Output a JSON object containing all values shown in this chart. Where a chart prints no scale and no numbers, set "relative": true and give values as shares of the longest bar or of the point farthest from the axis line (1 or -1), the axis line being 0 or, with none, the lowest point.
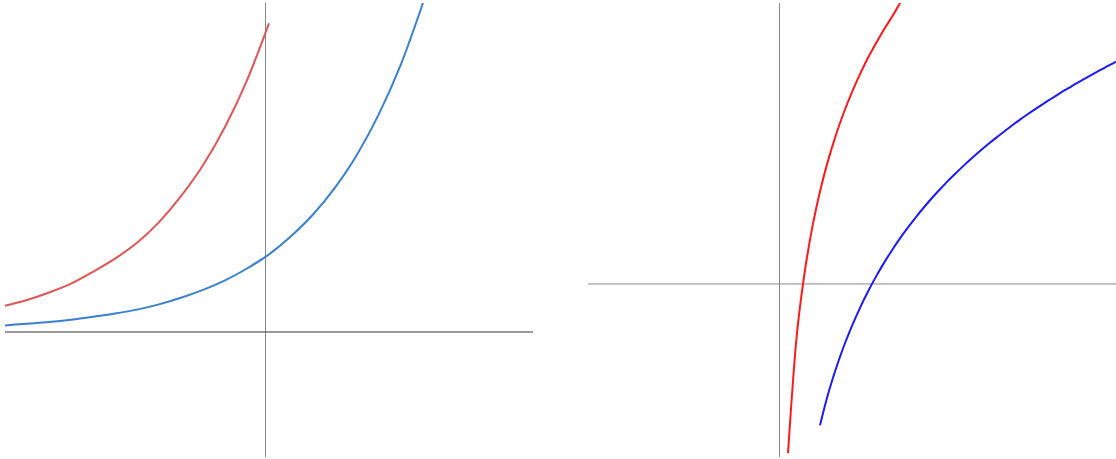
{
  "chart_data": [
    {
      "type": "line",
      "relative": true,
      "categories": [
        null,
        null,
        null,
        null,
        null,
        null,
        null,
        null,
        null,
        null,
        null,
        null,
        null,
        null,
        null,
        null,
        null,
        null,
        null,
        null,
        null,
        null,
        null,
        null,
        null
      ],
      "series": [
        {
          "color": "#e05555",
          "values": [
            0.08,
            0.097,
            0.12,
            0.147,
            0.183,
            0.223,
            0.271,
            0.334,
            0.413,
            0.507,
            0.623,
            0.765,
            0.938,
            null,
            null,
            null,
            null,
            null,
            null,
            null,
            null,
            null,
            null,
            null,
            null
          ]
        },
        {
          "color": "#3a80d0",
          "values": [
            0.02,
            0.025,
            0.03,
            0.037,
            0.046,
            0.056,
            0.068,
            0.084,
            0.104,
            0.128,
            0.157,
            0.193,
            0.236,
            0.291,
            0.357,
            0.439,
            0.539,
            0.663,
            0.814,
            1,
            null,
            null,
            null,
            null,
            null
          ]
        }
      ],
      "ref_lines": [
        {
          "axis": "y",
          "value": 0,
          "color": "#333333"
        }
      ],
      "marker": "none",
      "line_style": "solid",
      "grid": false,
      "legend": false
    },
    {
      "type": "line",
      "relative": true,
      "categories": [
        null,
        null,
        null,
        null,
        null,
        null,
        null,
        null,
        null,
        null,
        null,
        null,
        null,
        null,
        null,
        null,
        null,
        null,
        null,
        null,
        null,
        null,
        null,
        null,
        null,
        null,
        null,
        null,
        null,
        null,
        null,
        null,
        null,
        null,
        null,
        null,
        null,
        null,
        null,
        null,
        null,
        null,
        null,
        null,
        null,
        null,
        null,
        null,
        null,
        null,
        null,
        null,
        null,
        null,
        null,
        null,
        null,
        null,
        null,
        null,
        null,
        null,
        null,
        null,
        null,
        null,
        null
      ],
      "series": [
        {
          "color": "#ff1a1a",
          "values": [
            null,
            null,
            null,
            null,
            null,
            null,
            null,
            null,
            null,
            null,
            null,
            null,
            null,
            null,
            null,
            null,
            null,
            null,
            null,
            null,
            null,
            null,
            null,
            null,
            null,
            -0.602,
            -0.212,
            0.025,
            0.196,
            0.329,
            0.438,
            0.531,
            0.612,
            0.683,
            0.747,
            0.805,
            0.857,
            0.906,
            0.951,
            1,
            null,
            null,
            null,
            null,
            null,
            null,
            null,
            null,
            null,
            null,
            null,
            null,
            null,
            null,
            null,
            null,
            null,
            null,
            null,
            null,
            null,
            null,
            null,
            null,
            null,
            null,
            null
          ]
        },
        {
          "color": "#1a1aff",
          "values": [
            null,
            null,
            null,
            null,
            null,
            null,
            null,
            null,
            null,
            null,
            null,
            null,
            null,
            null,
            null,
            null,
            null,
            null,
            null,
            null,
            null,
            null,
            null,
            null,
            null,
            null,
            null,
            null,
            null,
            -0.503,
            -0.393,
            -0.301,
            -0.22,
            -0.149,
            -0.085,
            -0.027,
            0.026,
            0.075,
            0.12,
            0.162,
            0.201,
            0.238,
            0.273,
            0.306,
            0.337,
            0.367,
            0.395,
            0.422,
            0.448,
            0.473,
            0.497,
            0.52,
            0.542,
            0.564,
            0.585,
            0.605,
            0.624,
            0.643,
            0.661,
            0.679,
            0.696,
            0.713,
            0.729,
            0.745,
            0.761,
            0.776,
            0.791
          ]
        }
      ],
      "ref_lines": [
        {
          "axis": "y",
          "value": 0,
          "color": "#888888"
        }
      ],
      "marker": "none",
      "line_style": "solid",
      "grid": false,
      "legend": false
    }
  ]
}
